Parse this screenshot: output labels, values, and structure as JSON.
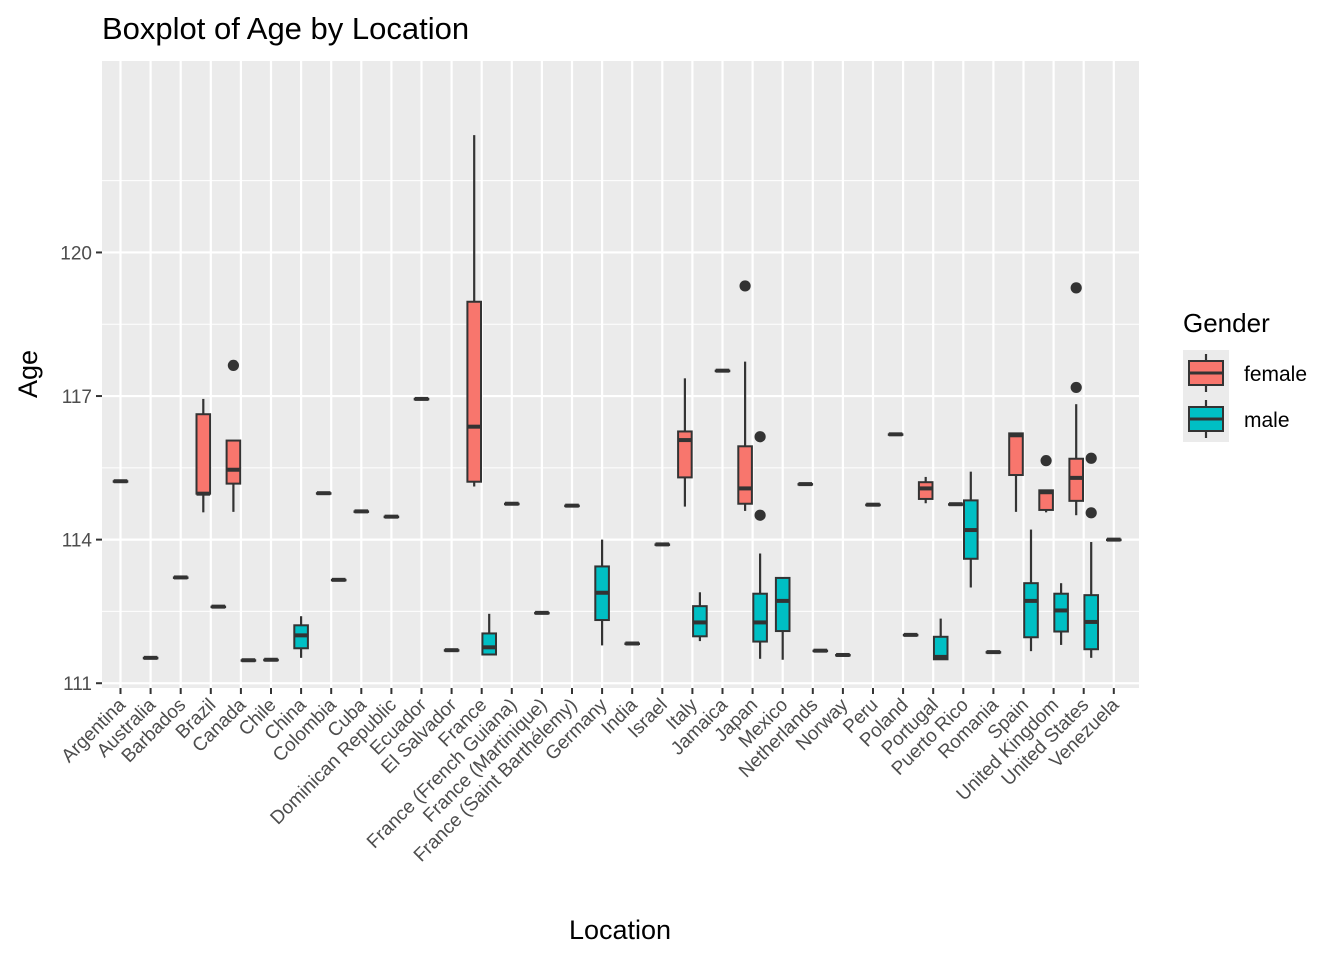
{
  "chart_data": {
    "type": "boxplot",
    "title": "Boxplot of Age by Location",
    "xlabel": "Location",
    "ylabel": "Age",
    "ylim": [
      110.9,
      124.0
    ],
    "yticks": [
      111,
      114,
      117,
      120
    ],
    "grid": true,
    "legend": {
      "title": "Gender",
      "placement": "right",
      "entries": [
        {
          "name": "female",
          "color": "#F8766D"
        },
        {
          "name": "male",
          "color": "#00BFC4"
        }
      ]
    },
    "categories": [
      "Argentina",
      "Australia",
      "Barbados",
      "Brazil",
      "Canada",
      "Chile",
      "China",
      "Colombia",
      "Cuba",
      "Dominican Republic",
      "Ecuador",
      "El Salvador",
      "France",
      "France (French Guiana)",
      "France (Martinique)",
      "France (Saint Barthélemy)",
      "Germany",
      "India",
      "Israel",
      "Italy",
      "Jamaica",
      "Japan",
      "Mexico",
      "Netherlands",
      "Norway",
      "Peru",
      "Poland",
      "Portugal",
      "Puerto Rico",
      "Romania",
      "Spain",
      "United Kingdom",
      "United States",
      "Venezuela"
    ],
    "boxes": [
      {
        "category": "Argentina",
        "series": "female",
        "offset": 0,
        "q1": 115.22,
        "median": 115.22,
        "q3": 115.22,
        "whisker_low": 115.22,
        "whisker_high": 115.22,
        "outliers": []
      },
      {
        "category": "Australia",
        "series": "female",
        "offset": 0,
        "q1": 111.53,
        "median": 111.53,
        "q3": 111.53,
        "whisker_low": 111.53,
        "whisker_high": 111.53,
        "outliers": []
      },
      {
        "category": "Barbados",
        "series": "female",
        "offset": 0,
        "q1": 113.21,
        "median": 113.21,
        "q3": 113.21,
        "whisker_low": 113.21,
        "whisker_high": 113.21,
        "outliers": []
      },
      {
        "category": "Brazil",
        "series": "female",
        "offset": -1,
        "q1": 114.96,
        "median": 114.96,
        "q3": 116.62,
        "whisker_low": 114.57,
        "whisker_high": 116.94,
        "outliers": []
      },
      {
        "category": "Brazil",
        "series": "male",
        "offset": 1,
        "q1": 112.6,
        "median": 112.6,
        "q3": 112.6,
        "whisker_low": 112.6,
        "whisker_high": 112.6,
        "outliers": []
      },
      {
        "category": "Canada",
        "series": "female",
        "offset": -1,
        "q1": 115.17,
        "median": 115.46,
        "q3": 116.07,
        "whisker_low": 114.58,
        "whisker_high": 116.07,
        "outliers": [
          117.64
        ]
      },
      {
        "category": "Canada",
        "series": "male",
        "offset": 1,
        "q1": 111.48,
        "median": 111.48,
        "q3": 111.48,
        "whisker_low": 111.48,
        "whisker_high": 111.48,
        "outliers": []
      },
      {
        "category": "Chile",
        "series": "female",
        "offset": 0,
        "q1": 111.49,
        "median": 111.49,
        "q3": 111.49,
        "whisker_low": 111.49,
        "whisker_high": 111.49,
        "outliers": []
      },
      {
        "category": "China",
        "series": "male",
        "offset": 0,
        "q1": 111.73,
        "median": 112.0,
        "q3": 112.21,
        "whisker_low": 111.53,
        "whisker_high": 112.4,
        "outliers": []
      },
      {
        "category": "Colombia",
        "series": "female",
        "offset": -1,
        "q1": 114.97,
        "median": 114.97,
        "q3": 114.97,
        "whisker_low": 114.97,
        "whisker_high": 114.97,
        "outliers": []
      },
      {
        "category": "Colombia",
        "series": "male",
        "offset": 1,
        "q1": 113.16,
        "median": 113.16,
        "q3": 113.16,
        "whisker_low": 113.16,
        "whisker_high": 113.16,
        "outliers": []
      },
      {
        "category": "Cuba",
        "series": "female",
        "offset": 0,
        "q1": 114.59,
        "median": 114.59,
        "q3": 114.59,
        "whisker_low": 114.59,
        "whisker_high": 114.59,
        "outliers": []
      },
      {
        "category": "Dominican Republic",
        "series": "female",
        "offset": 0,
        "q1": 114.48,
        "median": 114.48,
        "q3": 114.48,
        "whisker_low": 114.48,
        "whisker_high": 114.48,
        "outliers": []
      },
      {
        "category": "Ecuador",
        "series": "female",
        "offset": 0,
        "q1": 116.94,
        "median": 116.94,
        "q3": 116.94,
        "whisker_low": 116.94,
        "whisker_high": 116.94,
        "outliers": []
      },
      {
        "category": "El Salvador",
        "series": "male",
        "offset": 0,
        "q1": 111.69,
        "median": 111.69,
        "q3": 111.69,
        "whisker_low": 111.69,
        "whisker_high": 111.69,
        "outliers": []
      },
      {
        "category": "France",
        "series": "female",
        "offset": -1,
        "q1": 115.21,
        "median": 116.36,
        "q3": 118.97,
        "whisker_low": 115.11,
        "whisker_high": 122.45,
        "outliers": []
      },
      {
        "category": "France",
        "series": "male",
        "offset": 1,
        "q1": 111.6,
        "median": 111.75,
        "q3": 112.04,
        "whisker_low": 111.6,
        "whisker_high": 112.45,
        "outliers": []
      },
      {
        "category": "France (French Guiana)",
        "series": "female",
        "offset": 0,
        "q1": 114.75,
        "median": 114.75,
        "q3": 114.75,
        "whisker_low": 114.75,
        "whisker_high": 114.75,
        "outliers": []
      },
      {
        "category": "France (Martinique)",
        "series": "male",
        "offset": 0,
        "q1": 112.47,
        "median": 112.47,
        "q3": 112.47,
        "whisker_low": 112.47,
        "whisker_high": 112.47,
        "outliers": []
      },
      {
        "category": "France (Saint Barthélemy)",
        "series": "female",
        "offset": 0,
        "q1": 114.71,
        "median": 114.71,
        "q3": 114.71,
        "whisker_low": 114.71,
        "whisker_high": 114.71,
        "outliers": []
      },
      {
        "category": "Germany",
        "series": "male",
        "offset": 0,
        "q1": 112.32,
        "median": 112.89,
        "q3": 113.44,
        "whisker_low": 111.79,
        "whisker_high": 114.0,
        "outliers": []
      },
      {
        "category": "India",
        "series": "male",
        "offset": 0,
        "q1": 111.83,
        "median": 111.83,
        "q3": 111.83,
        "whisker_low": 111.83,
        "whisker_high": 111.83,
        "outliers": []
      },
      {
        "category": "Israel",
        "series": "female",
        "offset": 0,
        "q1": 113.9,
        "median": 113.9,
        "q3": 113.9,
        "whisker_low": 113.9,
        "whisker_high": 113.9,
        "outliers": []
      },
      {
        "category": "Italy",
        "series": "female",
        "offset": -1,
        "q1": 115.3,
        "median": 116.08,
        "q3": 116.26,
        "whisker_low": 114.69,
        "whisker_high": 117.37,
        "outliers": []
      },
      {
        "category": "Italy",
        "series": "male",
        "offset": 1,
        "q1": 111.98,
        "median": 112.27,
        "q3": 112.61,
        "whisker_low": 111.88,
        "whisker_high": 112.9,
        "outliers": []
      },
      {
        "category": "Jamaica",
        "series": "female",
        "offset": 0,
        "q1": 117.53,
        "median": 117.53,
        "q3": 117.53,
        "whisker_low": 117.53,
        "whisker_high": 117.53,
        "outliers": []
      },
      {
        "category": "Japan",
        "series": "female",
        "offset": -1,
        "q1": 114.75,
        "median": 115.07,
        "q3": 115.95,
        "whisker_low": 114.6,
        "whisker_high": 117.72,
        "outliers": [
          119.3
        ]
      },
      {
        "category": "Japan",
        "series": "male",
        "offset": 1,
        "q1": 111.87,
        "median": 112.27,
        "q3": 112.87,
        "whisker_low": 111.51,
        "whisker_high": 113.71,
        "outliers": [
          116.15,
          114.51
        ]
      },
      {
        "category": "Mexico",
        "series": "male",
        "offset": 0,
        "q1": 112.09,
        "median": 112.72,
        "q3": 113.2,
        "whisker_low": 111.49,
        "whisker_high": 113.2,
        "outliers": []
      },
      {
        "category": "Netherlands",
        "series": "female",
        "offset": -1,
        "q1": 115.16,
        "median": 115.16,
        "q3": 115.16,
        "whisker_low": 115.16,
        "whisker_high": 115.16,
        "outliers": []
      },
      {
        "category": "Netherlands",
        "series": "male",
        "offset": 1,
        "q1": 111.68,
        "median": 111.68,
        "q3": 111.68,
        "whisker_low": 111.68,
        "whisker_high": 111.68,
        "outliers": []
      },
      {
        "category": "Norway",
        "series": "male",
        "offset": 0,
        "q1": 111.59,
        "median": 111.59,
        "q3": 111.59,
        "whisker_low": 111.59,
        "whisker_high": 111.59,
        "outliers": []
      },
      {
        "category": "Peru",
        "series": "female",
        "offset": 0,
        "q1": 114.73,
        "median": 114.73,
        "q3": 114.73,
        "whisker_low": 114.73,
        "whisker_high": 114.73,
        "outliers": []
      },
      {
        "category": "Poland",
        "series": "female",
        "offset": -1,
        "q1": 116.2,
        "median": 116.2,
        "q3": 116.2,
        "whisker_low": 116.2,
        "whisker_high": 116.2,
        "outliers": []
      },
      {
        "category": "Poland",
        "series": "male",
        "offset": 1,
        "q1": 112.01,
        "median": 112.01,
        "q3": 112.01,
        "whisker_low": 112.01,
        "whisker_high": 112.01,
        "outliers": []
      },
      {
        "category": "Portugal",
        "series": "female",
        "offset": -1,
        "q1": 114.85,
        "median": 115.07,
        "q3": 115.2,
        "whisker_low": 114.76,
        "whisker_high": 115.31,
        "outliers": []
      },
      {
        "category": "Portugal",
        "series": "male",
        "offset": 1,
        "q1": 111.5,
        "median": 111.55,
        "q3": 111.97,
        "whisker_low": 111.5,
        "whisker_high": 112.35,
        "outliers": []
      },
      {
        "category": "Puerto Rico",
        "series": "female",
        "offset": -1,
        "q1": 114.74,
        "median": 114.74,
        "q3": 114.74,
        "whisker_low": 114.74,
        "whisker_high": 114.74,
        "outliers": []
      },
      {
        "category": "Puerto Rico",
        "series": "male",
        "offset": 1,
        "q1": 113.6,
        "median": 114.2,
        "q3": 114.82,
        "whisker_low": 113.0,
        "whisker_high": 115.42,
        "outliers": []
      },
      {
        "category": "Romania",
        "series": "male",
        "offset": 0,
        "q1": 111.65,
        "median": 111.65,
        "q3": 111.65,
        "whisker_low": 111.65,
        "whisker_high": 111.65,
        "outliers": []
      },
      {
        "category": "Spain",
        "series": "female",
        "offset": -1,
        "q1": 115.35,
        "median": 116.18,
        "q3": 116.22,
        "whisker_low": 114.58,
        "whisker_high": 116.22,
        "outliers": []
      },
      {
        "category": "Spain",
        "series": "male",
        "offset": 1,
        "q1": 111.96,
        "median": 112.72,
        "q3": 113.09,
        "whisker_low": 111.67,
        "whisker_high": 114.21,
        "outliers": []
      },
      {
        "category": "United Kingdom",
        "series": "female",
        "offset": -1,
        "q1": 114.62,
        "median": 114.99,
        "q3": 115.03,
        "whisker_low": 114.57,
        "whisker_high": 115.03,
        "outliers": [
          115.65
        ]
      },
      {
        "category": "United Kingdom",
        "series": "male",
        "offset": 1,
        "q1": 112.08,
        "median": 112.52,
        "q3": 112.87,
        "whisker_low": 111.8,
        "whisker_high": 113.09,
        "outliers": []
      },
      {
        "category": "United States",
        "series": "female",
        "offset": -1,
        "q1": 114.81,
        "median": 115.29,
        "q3": 115.69,
        "whisker_low": 114.51,
        "whisker_high": 116.83,
        "outliers": [
          119.26,
          117.18
        ]
      },
      {
        "category": "United States",
        "series": "male",
        "offset": 1,
        "q1": 111.71,
        "median": 112.28,
        "q3": 112.84,
        "whisker_low": 111.53,
        "whisker_high": 113.95,
        "outliers": [
          115.7,
          114.56
        ]
      },
      {
        "category": "Venezuela",
        "series": "female",
        "offset": 0,
        "q1": 114.0,
        "median": 114.0,
        "q3": 114.0,
        "whisker_low": 114.0,
        "whisker_high": 114.0,
        "outliers": []
      }
    ]
  }
}
